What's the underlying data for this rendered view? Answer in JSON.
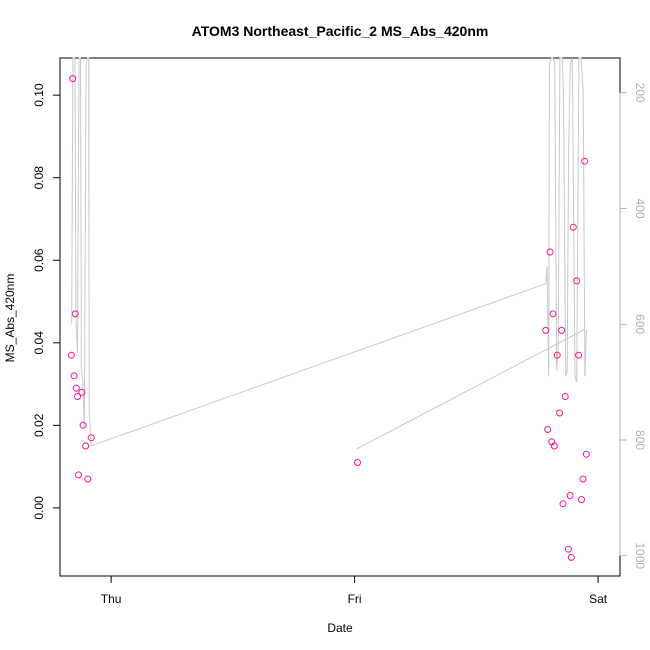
{
  "chart_data": {
    "type": "scatter",
    "title": "ATOM3 Northeast_Pacific_2 MS_Abs_420nm",
    "xlabel": "Date",
    "ylabel": "MS_Abs_420nm",
    "x_ticks": [
      {
        "value": 1.0,
        "label": "Thu"
      },
      {
        "value": 2.0,
        "label": "Fri"
      },
      {
        "value": 3.0,
        "label": "Sat"
      }
    ],
    "xlim": [
      0.79,
      3.09
    ],
    "ylim": [
      -0.0165,
      0.109
    ],
    "y_ticks": [
      {
        "value": 0.0,
        "label": "0.00"
      },
      {
        "value": 0.02,
        "label": "0.02"
      },
      {
        "value": 0.04,
        "label": "0.04"
      },
      {
        "value": 0.06,
        "label": "0.06"
      },
      {
        "value": 0.08,
        "label": "0.08"
      },
      {
        "value": 0.1,
        "label": "0.10"
      }
    ],
    "y2lim": [
      1035,
      140
    ],
    "y2_ticks": [
      {
        "value": 200,
        "label": "200"
      },
      {
        "value": 400,
        "label": "400"
      },
      {
        "value": 600,
        "label": "600"
      },
      {
        "value": 800,
        "label": "800"
      },
      {
        "value": 1000,
        "label": "1000"
      }
    ],
    "colors": {
      "points": "#ff1493",
      "altitude_line": "#c8c8c8",
      "right_axis": "#b0b0b0"
    },
    "series": [
      {
        "values": [
          [
            0.837,
            0.037
          ],
          [
            0.842,
            0.104
          ],
          [
            0.848,
            0.032
          ],
          [
            0.853,
            0.047
          ],
          [
            0.857,
            0.029
          ],
          [
            0.862,
            0.027
          ],
          [
            0.866,
            0.008
          ],
          [
            0.88,
            0.028
          ],
          [
            0.885,
            0.02
          ],
          [
            0.895,
            0.015
          ],
          [
            0.904,
            0.007
          ],
          [
            0.918,
            0.017
          ],
          [
            2.012,
            0.011
          ],
          [
            2.785,
            0.043
          ],
          [
            2.793,
            0.019
          ],
          [
            2.803,
            0.062
          ],
          [
            2.81,
            0.016
          ],
          [
            2.815,
            0.047
          ],
          [
            2.82,
            0.015
          ],
          [
            2.832,
            0.037
          ],
          [
            2.842,
            0.023
          ],
          [
            2.85,
            0.043
          ],
          [
            2.856,
            0.001
          ],
          [
            2.865,
            0.027
          ],
          [
            2.878,
            -0.01
          ],
          [
            2.885,
            0.003
          ],
          [
            2.89,
            -0.012
          ],
          [
            2.898,
            0.068
          ],
          [
            2.912,
            0.055
          ],
          [
            2.92,
            0.037
          ],
          [
            2.932,
            0.002
          ],
          [
            2.938,
            0.007
          ],
          [
            2.945,
            0.084
          ],
          [
            2.952,
            0.013
          ]
        ]
      },
      {
        "values": [
          [
            0.838,
            600
          ],
          [
            0.843,
            100
          ],
          [
            0.851,
            50
          ],
          [
            0.856,
            600
          ],
          [
            0.862,
            650
          ],
          [
            0.868,
            100
          ],
          [
            0.874,
            50
          ],
          [
            0.878,
            680
          ],
          [
            0.884,
            700
          ],
          [
            0.89,
            780
          ],
          [
            0.897,
            150
          ],
          [
            0.903,
            50
          ],
          [
            0.908,
            120
          ],
          [
            0.91,
            750
          ],
          [
            0.918,
            810
          ],
          [
            2.785,
            530
          ],
          [
            2.79,
            500
          ],
          [
            2.797,
            690
          ],
          [
            2.8,
            150
          ],
          [
            2.808,
            100
          ],
          [
            2.815,
            50
          ],
          [
            2.822,
            150
          ],
          [
            2.83,
            680
          ],
          [
            2.836,
            640
          ],
          [
            2.843,
            50
          ],
          [
            2.852,
            100
          ],
          [
            2.858,
            200
          ],
          [
            2.867,
            690
          ],
          [
            2.873,
            680
          ],
          [
            2.879,
            300
          ],
          [
            2.886,
            150
          ],
          [
            2.894,
            50
          ],
          [
            2.905,
            690
          ],
          [
            2.912,
            700
          ],
          [
            2.921,
            100
          ],
          [
            2.93,
            50
          ],
          [
            2.939,
            200
          ],
          [
            2.946,
            690
          ],
          [
            2.952,
            610
          ]
        ]
      }
    ],
    "extra_segments": [
      [
        [
          2.01,
          815
        ],
        [
          2.945,
          609
        ]
      ]
    ]
  }
}
